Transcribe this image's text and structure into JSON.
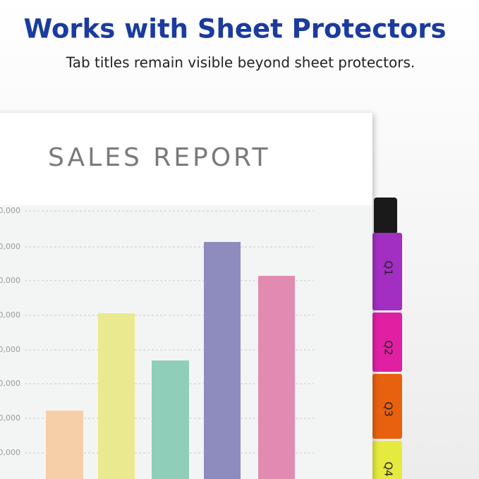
{
  "header": {
    "title": "Works with Sheet Protectors",
    "subtitle": "Tab titles remain visible beyond sheet protectors."
  },
  "report": {
    "title": "SALES REPORT",
    "axis_labels": [
      "0,000",
      "0,000",
      "0,000",
      "0,000",
      "0,000",
      "0,000",
      "0,000",
      "0,000"
    ]
  },
  "tabs": [
    "Q1",
    "Q2",
    "Q3",
    "Q4"
  ]
}
